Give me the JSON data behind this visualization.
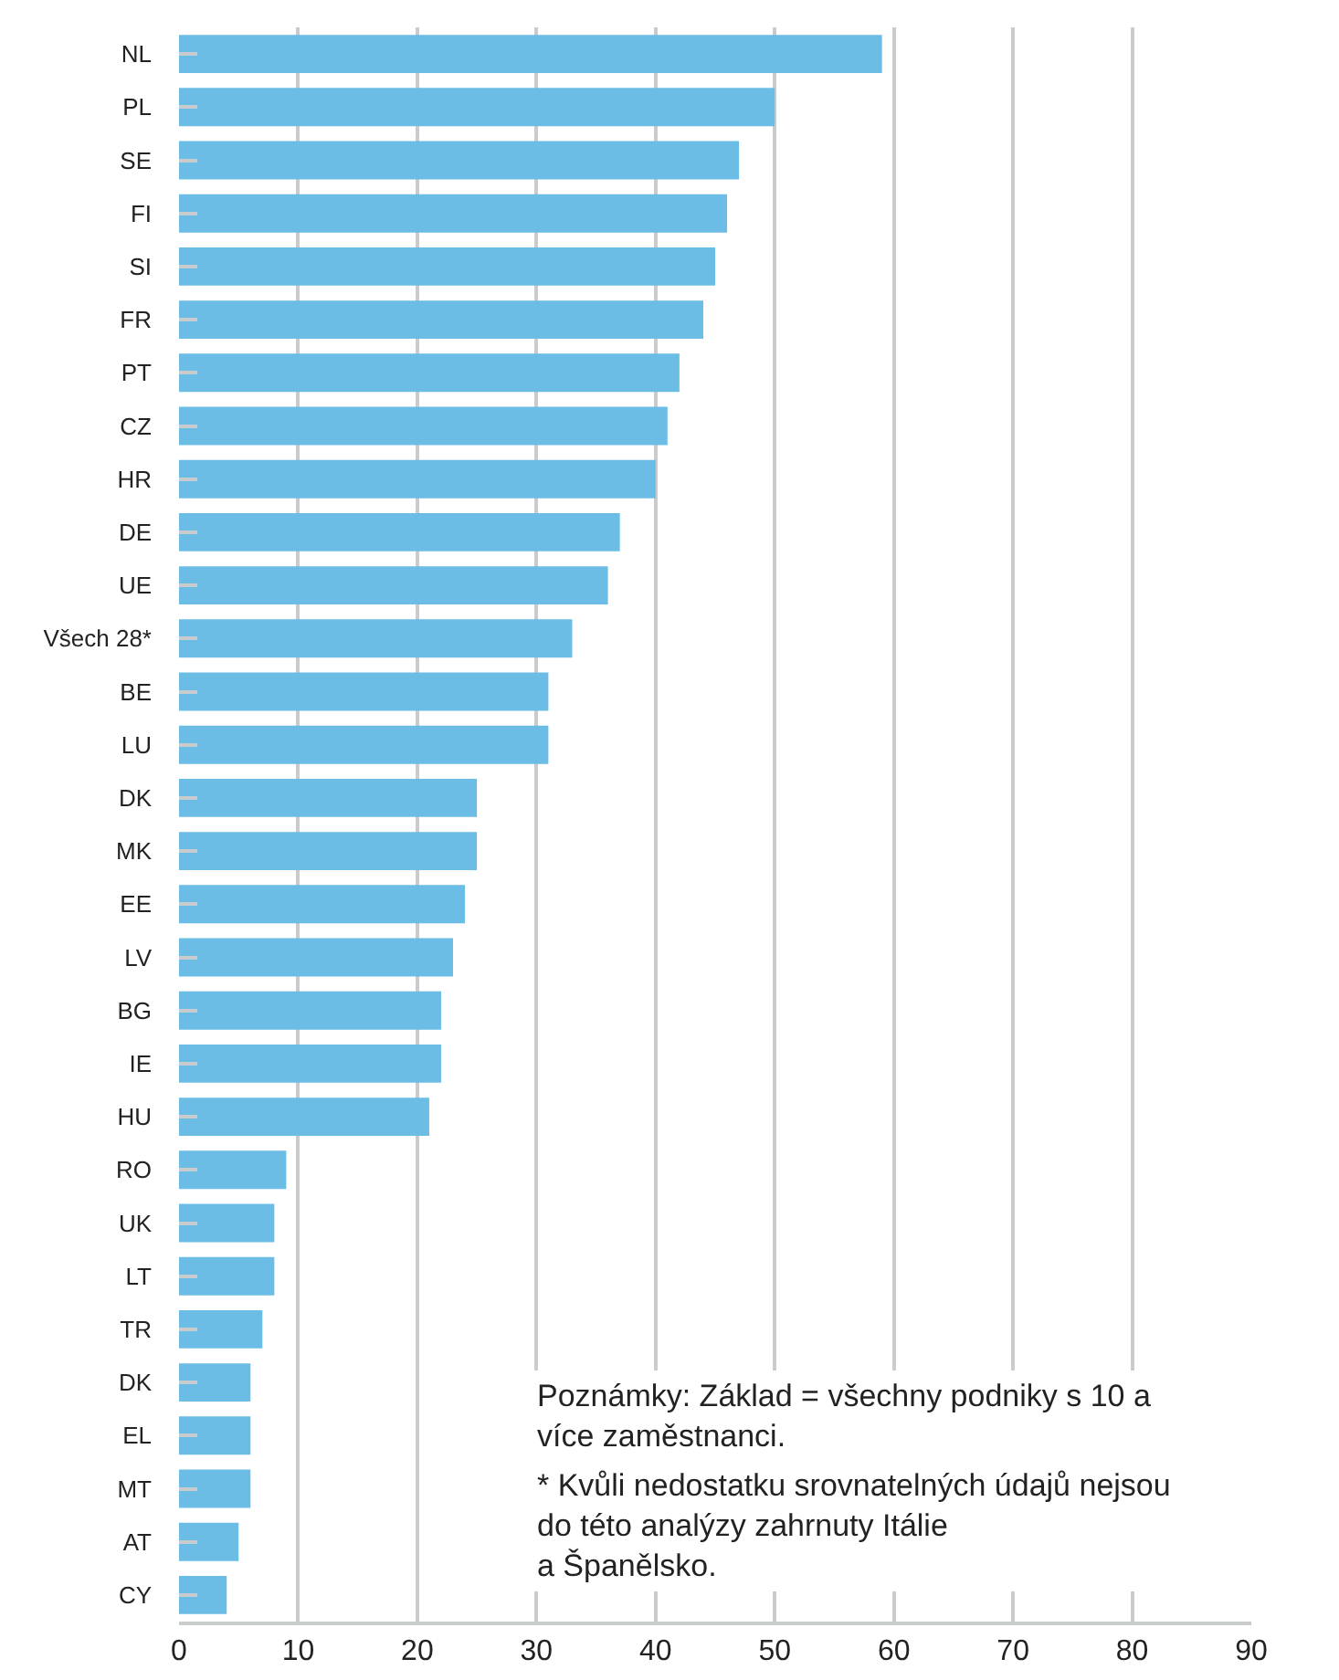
{
  "chart_data": {
    "type": "bar",
    "orientation": "horizontal",
    "categories": [
      "NL",
      "PL",
      "SE",
      "FI",
      "SI",
      "FR",
      "PT",
      "CZ",
      "HR",
      "DE",
      "UE",
      "Všech 28*",
      "BE",
      "LU",
      "DK",
      "MK",
      "EE",
      "LV",
      "BG",
      "IE",
      "HU",
      "RO",
      "UK",
      "LT",
      "TR",
      "DK",
      "EL",
      "MT",
      "AT",
      "CY"
    ],
    "values": [
      59,
      50,
      47,
      46,
      45,
      44,
      42,
      41,
      40,
      37,
      36,
      33,
      31,
      31,
      25,
      25,
      24,
      23,
      22,
      22,
      21,
      9,
      8,
      8,
      7,
      6,
      6,
      6,
      5,
      4
    ],
    "color": "#6bbde6",
    "xlim": [
      0,
      90
    ],
    "xticks": [
      0,
      10,
      20,
      30,
      40,
      50,
      60,
      70,
      80,
      90
    ],
    "grid": "x",
    "legend": false,
    "annotations": [
      "Poznámky: Základ = všechny podniky s 10 a více zaměstnanci.",
      "* Kvůli nedostatku srovnatelných údajů nejsou do této analýzy zahrnuty Itálie a Španělsko."
    ]
  }
}
